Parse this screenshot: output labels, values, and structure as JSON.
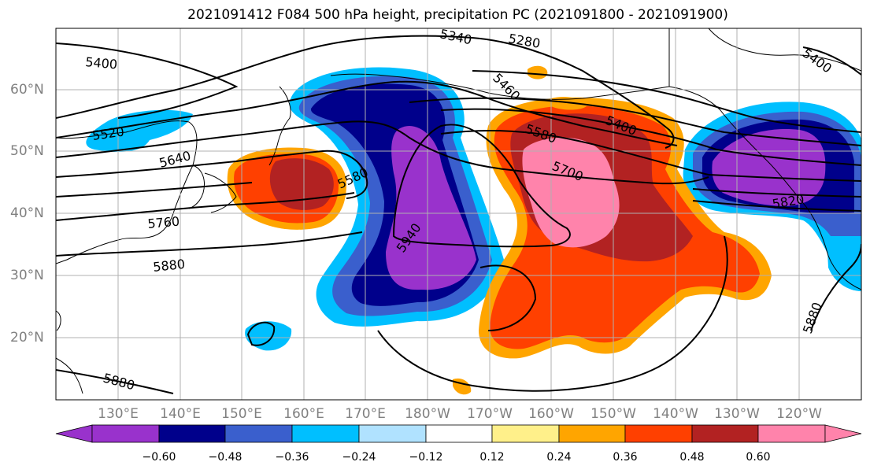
{
  "title": "2021091412 F084 500 hPa height, precipitation PC (2021091800 - 2021091900)",
  "lat_labels": [
    "60°N",
    "50°N",
    "40°N",
    "30°N",
    "20°N"
  ],
  "lon_labels": [
    "130°E",
    "140°E",
    "150°E",
    "160°E",
    "170°E",
    "180°W",
    "170°W",
    "160°W",
    "150°W",
    "140°W",
    "130°W",
    "120°W"
  ],
  "contour_labels": [
    "5340",
    "5280",
    "5400",
    "5460",
    "5400",
    "5400",
    "5520",
    "5640",
    "5580",
    "5580",
    "5700",
    "5760",
    "5820",
    "5880",
    "5940",
    "5880",
    "5880"
  ],
  "colorbar": {
    "ticks": [
      "−0.60",
      "−0.48",
      "−0.36",
      "−0.24",
      "−0.12",
      "0.12",
      "0.24",
      "0.36",
      "0.48",
      "0.60"
    ],
    "colors": [
      "#9932cc",
      "#00008b",
      "#3a5fcd",
      "#00bfff",
      "#b0e2ff",
      "#ffffff",
      "#fff08a",
      "#ffa500",
      "#ff4000",
      "#b22222",
      "#ff83ab"
    ]
  },
  "colors": {
    "grid": "#b0b0b0",
    "contour": "#000000"
  }
}
